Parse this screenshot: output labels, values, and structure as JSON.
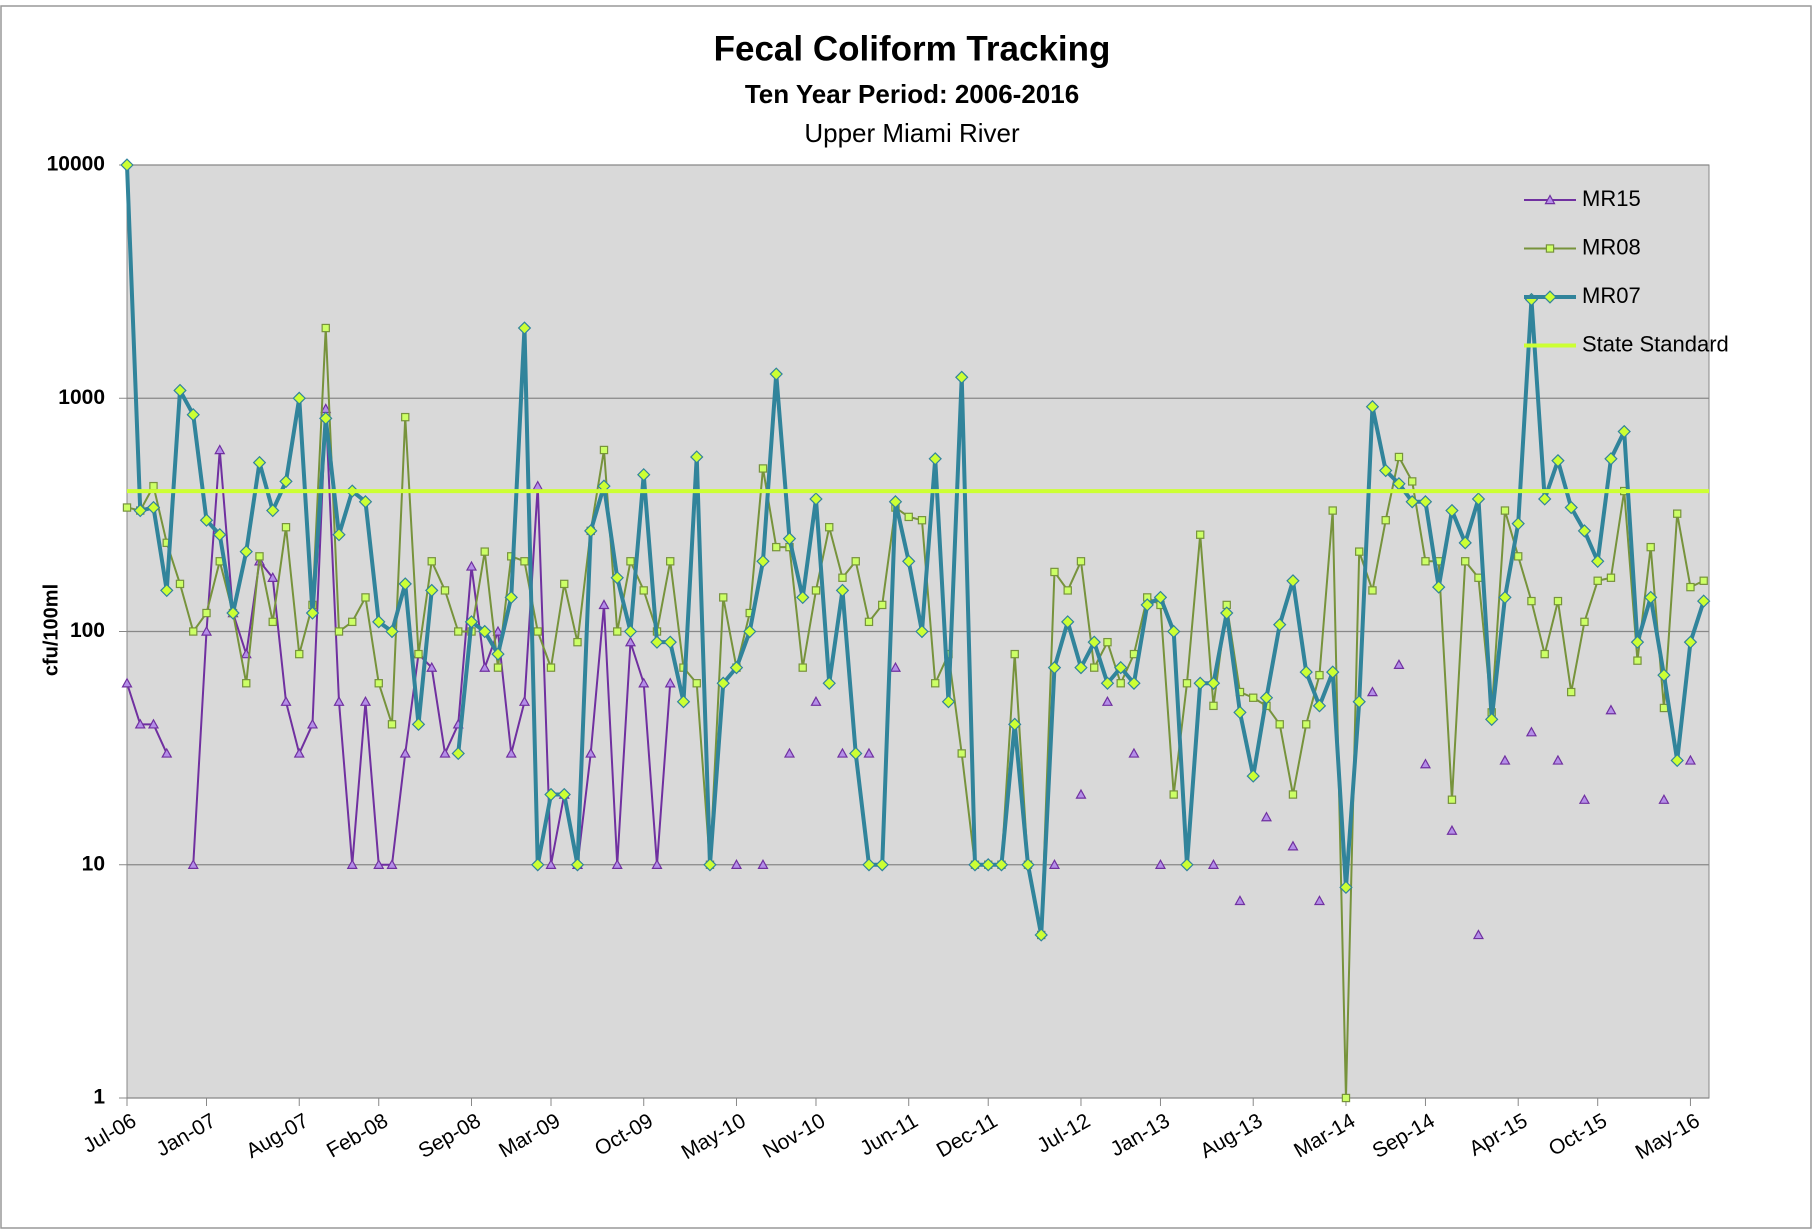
{
  "chart_data": {
    "type": "line",
    "title": "Fecal Coliform Tracking",
    "subtitle": "Ten Year Period: 2006-2016",
    "location": "Upper Miami River",
    "y_label": "cfu/100ml",
    "log_y": true,
    "grid": true,
    "legend": "upper-right",
    "ylim": [
      1,
      10000
    ],
    "yticks": [
      1,
      10,
      100,
      1000,
      10000
    ],
    "categories": [
      "Jul-06",
      null,
      null,
      null,
      null,
      null,
      "Jan-07",
      null,
      null,
      null,
      null,
      null,
      null,
      "Aug-07",
      null,
      null,
      null,
      null,
      null,
      "Feb-08",
      null,
      null,
      null,
      null,
      null,
      null,
      "Sep-08",
      null,
      null,
      null,
      null,
      null,
      "Mar-09",
      null,
      null,
      null,
      null,
      null,
      null,
      "Oct-09",
      null,
      null,
      null,
      null,
      null,
      null,
      "May-10",
      null,
      null,
      null,
      null,
      null,
      "Nov-10",
      null,
      null,
      null,
      null,
      null,
      null,
      "Jun-11",
      null,
      null,
      null,
      null,
      null,
      "Dec-11",
      null,
      null,
      null,
      null,
      null,
      null,
      "Jul-12",
      null,
      null,
      null,
      null,
      null,
      "Jan-13",
      null,
      null,
      null,
      null,
      null,
      null,
      "Aug-13",
      null,
      null,
      null,
      null,
      null,
      null,
      "Mar-14",
      null,
      null,
      null,
      null,
      null,
      "Sep-14",
      null,
      null,
      null,
      null,
      null,
      null,
      "Apr-15",
      null,
      null,
      null,
      null,
      null,
      "Oct-15",
      null,
      null,
      null,
      null,
      null,
      null,
      "May-16",
      null
    ],
    "series": [
      {
        "name": "MR15",
        "color": "#7030a0",
        "marker": "triangle",
        "marker_fill": "#b48ee8",
        "line_width": 2,
        "values": [
          60,
          40,
          40,
          30,
          null,
          10,
          100,
          600,
          120,
          80,
          200,
          170,
          50,
          30,
          40,
          900,
          50,
          10,
          50,
          10,
          10,
          30,
          80,
          70,
          30,
          40,
          190,
          70,
          100,
          30,
          50,
          420,
          10,
          20,
          10,
          30,
          130,
          10,
          90,
          60,
          10,
          60,
          null,
          null,
          null,
          null,
          10,
          null,
          10,
          null,
          30,
          null,
          50,
          null,
          30,
          null,
          30,
          null,
          70,
          null,
          null,
          null,
          null,
          null,
          null,
          null,
          null,
          null,
          null,
          null,
          10,
          null,
          20,
          null,
          50,
          null,
          30,
          null,
          10,
          null,
          null,
          null,
          10,
          null,
          7,
          null,
          16,
          null,
          12,
          null,
          7,
          null,
          null,
          null,
          55,
          null,
          72,
          null,
          27,
          null,
          14,
          null,
          5,
          null,
          28,
          null,
          37,
          null,
          28,
          null,
          19,
          null,
          46,
          null,
          null,
          null,
          19,
          null,
          28,
          null
        ]
      },
      {
        "name": "MR08",
        "color": "#77933c",
        "marker": "square",
        "marker_fill": "#ccff66",
        "line_width": 2,
        "values": [
          340,
          330,
          420,
          240,
          160,
          100,
          120,
          200,
          120,
          60,
          210,
          110,
          280,
          80,
          130,
          2000,
          100,
          110,
          140,
          60,
          40,
          830,
          80,
          200,
          150,
          100,
          100,
          220,
          70,
          210,
          200,
          100,
          70,
          160,
          90,
          270,
          600,
          100,
          200,
          150,
          100,
          200,
          70,
          60,
          10,
          140,
          70,
          120,
          500,
          230,
          230,
          70,
          150,
          280,
          170,
          200,
          110,
          130,
          340,
          310,
          300,
          60,
          80,
          30,
          10,
          10,
          10,
          80,
          10,
          5,
          180,
          150,
          200,
          70,
          90,
          60,
          80,
          140,
          130,
          20,
          60,
          260,
          48,
          130,
          55,
          52,
          48,
          40,
          20,
          40,
          65,
          330,
          1,
          220,
          150,
          300,
          560,
          440,
          200,
          200,
          19,
          200,
          170,
          45,
          330,
          210,
          135,
          80,
          135,
          55,
          110,
          165,
          170,
          400,
          75,
          230,
          47,
          320,
          155,
          165
        ]
      },
      {
        "name": "MR07",
        "color": "#31849b",
        "marker": "diamond",
        "marker_fill": "#ccff33",
        "line_width": 4,
        "values": [
          10000,
          330,
          340,
          150,
          1080,
          850,
          300,
          260,
          120,
          220,
          530,
          330,
          440,
          1000,
          120,
          820,
          260,
          400,
          360,
          110,
          100,
          160,
          40,
          150,
          null,
          30,
          110,
          100,
          80,
          140,
          2000,
          10,
          20,
          20,
          10,
          270,
          420,
          170,
          100,
          470,
          90,
          90,
          50,
          560,
          10,
          60,
          70,
          100,
          200,
          1270,
          250,
          140,
          370,
          60,
          150,
          30,
          10,
          10,
          360,
          200,
          100,
          550,
          50,
          1230,
          10,
          10,
          10,
          40,
          10,
          5,
          70,
          110,
          70,
          90,
          60,
          70,
          60,
          130,
          140,
          100,
          10,
          60,
          60,
          120,
          45,
          24,
          52,
          107,
          165,
          67,
          48,
          67,
          8,
          50,
          920,
          490,
          430,
          360,
          360,
          155,
          330,
          240,
          370,
          42,
          140,
          290,
          2650,
          370,
          540,
          340,
          270,
          200,
          550,
          720,
          90,
          140,
          65,
          28,
          90,
          135
        ]
      }
    ],
    "hlines": [
      {
        "name": "State Standard",
        "value": 400,
        "color": "#ccff33"
      }
    ]
  }
}
